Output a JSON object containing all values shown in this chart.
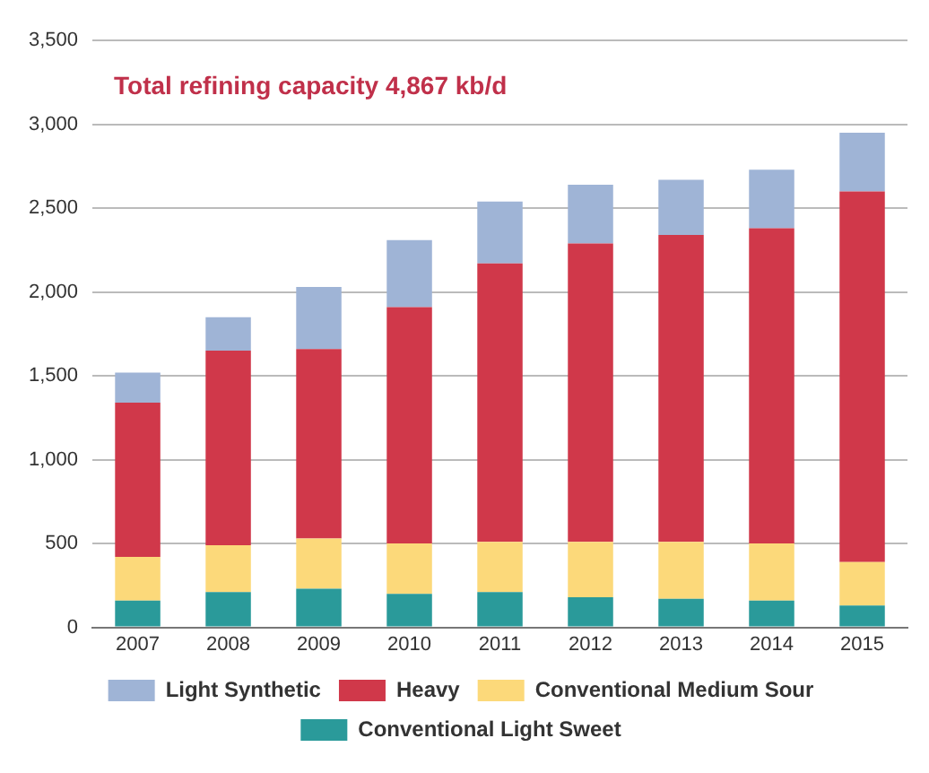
{
  "chart_data": {
    "type": "bar",
    "title": "Total refining capacity 4,867 kb/d",
    "categories": [
      "2007",
      "2008",
      "2009",
      "2010",
      "2011",
      "2012",
      "2013",
      "2014",
      "2015"
    ],
    "stacked": true,
    "series": [
      {
        "name": "Conventional Light Sweet",
        "color": "#2a9a9a",
        "values": [
          160,
          210,
          230,
          200,
          210,
          180,
          170,
          160,
          130
        ]
      },
      {
        "name": "Conventional Medium Sour",
        "color": "#fcd97a",
        "values": [
          260,
          280,
          300,
          300,
          300,
          330,
          340,
          340,
          260
        ]
      },
      {
        "name": "Heavy",
        "color": "#d0384a",
        "values": [
          920,
          1160,
          1130,
          1410,
          1660,
          1780,
          1830,
          1880,
          2210
        ]
      },
      {
        "name": "Light Synthetic",
        "color": "#9fb4d6",
        "values": [
          180,
          200,
          370,
          400,
          370,
          350,
          330,
          350,
          350
        ]
      }
    ],
    "ylim": [
      0,
      3500
    ],
    "yticks": [
      0,
      500,
      {
        "value": 1000,
        "label": "1,000"
      },
      {
        "value": 1500,
        "label": "1,500"
      },
      {
        "value": 2000,
        "label": "2,000"
      },
      {
        "value": 2500,
        "label": "2,500"
      },
      {
        "value": 3000,
        "label": "3,000"
      },
      {
        "value": 3500,
        "label": "3,500"
      }
    ],
    "grid": "y",
    "legend": "bottom"
  }
}
